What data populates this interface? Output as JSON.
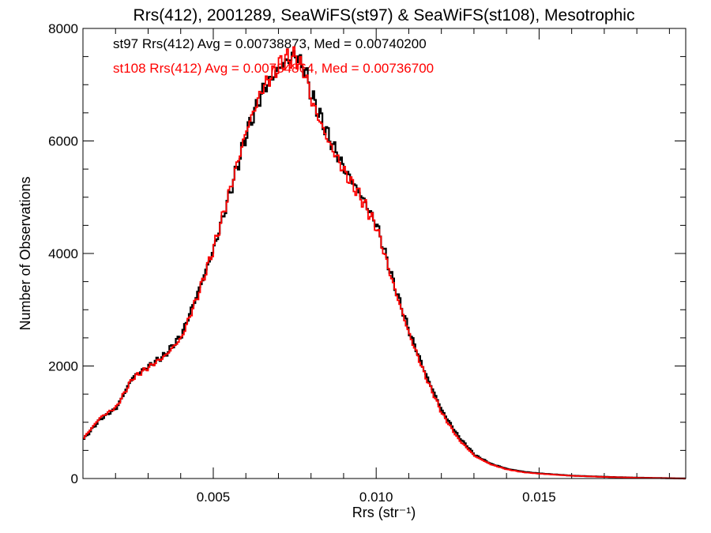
{
  "chart_data": {
    "type": "line",
    "title": "Rrs(412), 2001289, SeaWiFS(st97) & SeaWiFS(st108), Mesotrophic",
    "xlabel": "Rrs (str⁻¹)",
    "ylabel": "Number of Observations",
    "xlim": [
      0.001,
      0.0195
    ],
    "ylim": [
      0,
      8000
    ],
    "x_ticks": [
      {
        "value": 0.005,
        "label": "0.005"
      },
      {
        "value": 0.01,
        "label": "0.010"
      },
      {
        "value": 0.015,
        "label": "0.015"
      }
    ],
    "y_ticks": [
      {
        "value": 0,
        "label": "0"
      },
      {
        "value": 2000,
        "label": "2000"
      },
      {
        "value": 4000,
        "label": "4000"
      },
      {
        "value": 6000,
        "label": "6000"
      },
      {
        "value": 8000,
        "label": "8000"
      }
    ],
    "grid": false,
    "step_style": "histogram",
    "annotations": [
      {
        "text": "st97 Rrs(412) Avg = 0.00738873, Med = 0.00740200",
        "color": "#000000"
      },
      {
        "text": "st108 Rrs(412) Avg = 0.00734864, Med = 0.00736700",
        "color": "#ff0000"
      }
    ],
    "series": [
      {
        "color": "#000000",
        "x": [
          0.001,
          0.0015,
          0.002,
          0.0025,
          0.003,
          0.0035,
          0.004,
          0.0045,
          0.005,
          0.0055,
          0.006,
          0.0065,
          0.007,
          0.0072,
          0.0075,
          0.0078,
          0.008,
          0.0085,
          0.009,
          0.0095,
          0.01,
          0.0105,
          0.011,
          0.0115,
          0.012,
          0.0125,
          0.013,
          0.0135,
          0.014,
          0.0145,
          0.015,
          0.016,
          0.017,
          0.018,
          0.019,
          0.0195
        ],
        "y": [
          700,
          1050,
          1250,
          1800,
          2000,
          2200,
          2550,
          3300,
          4100,
          5100,
          6150,
          6900,
          7300,
          7400,
          7550,
          7250,
          6800,
          6100,
          5500,
          5050,
          4500,
          3500,
          2600,
          1850,
          1200,
          750,
          420,
          260,
          170,
          120,
          90,
          50,
          30,
          15,
          5,
          0
        ]
      },
      {
        "color": "#ff0000",
        "x": [
          0.001,
          0.0015,
          0.002,
          0.0025,
          0.003,
          0.0035,
          0.004,
          0.0045,
          0.005,
          0.0055,
          0.006,
          0.0065,
          0.007,
          0.0072,
          0.0075,
          0.0078,
          0.008,
          0.0085,
          0.009,
          0.0095,
          0.01,
          0.0105,
          0.011,
          0.0115,
          0.012,
          0.0125,
          0.013,
          0.0135,
          0.014,
          0.0145,
          0.015,
          0.016,
          0.017,
          0.018,
          0.019,
          0.0195
        ],
        "y": [
          720,
          1080,
          1270,
          1780,
          1980,
          2180,
          2500,
          3250,
          4120,
          5150,
          6200,
          6950,
          7350,
          7450,
          7500,
          7200,
          6700,
          6000,
          5450,
          5000,
          4450,
          3450,
          2550,
          1800,
          1150,
          700,
          400,
          250,
          160,
          110,
          85,
          48,
          28,
          14,
          5,
          0
        ]
      }
    ]
  }
}
